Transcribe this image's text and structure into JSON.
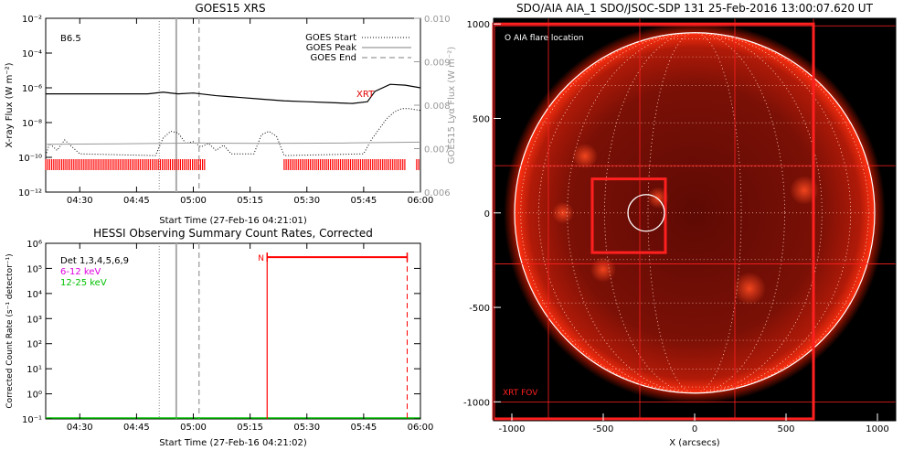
{
  "colors": {
    "goes_long": "#000000",
    "goes_short": "#000000",
    "lya": "#999999",
    "flare_bar": "#ff0000",
    "peak_line": "#aaaaaa",
    "hessi_low": "#ff00ff",
    "hessi_high": "#00c000",
    "xrt_marker": "#ff0000",
    "sun_bg": "#000000",
    "sun_disk": "#7a0d05",
    "sun_limb": "#ff2a10",
    "fov": "#ff2020"
  },
  "chart_data": [
    {
      "type": "line",
      "title": "GOES15 XRS",
      "xlabel": "Start Time (27-Feb-16 04:21:01)",
      "ylabel": "X-ray Flux (W m⁻²)",
      "ylabel_right": "GOES15 Lyα Flux (W m⁻²)",
      "x_tick_labels": [
        "04:30",
        "04:45",
        "05:00",
        "05:15",
        "05:30",
        "05:45",
        "06:00"
      ],
      "x_tick_minutes": [
        270,
        285,
        300,
        315,
        330,
        345,
        360
      ],
      "xlim_minutes": [
        261,
        360
      ],
      "y_tick_labels": [
        "10⁻¹²",
        "10⁻¹⁰",
        "10⁻⁸",
        "10⁻⁶",
        "10⁻⁴",
        "10⁻²"
      ],
      "y_tick_exponents": [
        -12,
        -10,
        -8,
        -6,
        -4,
        -2
      ],
      "ylim_log10": [
        -12,
        -2
      ],
      "y2_tick_labels": [
        "0.006",
        "0.007",
        "0.008",
        "0.009",
        "0.010"
      ],
      "y2lim": [
        0.006,
        0.01
      ],
      "class_label": "B6.5",
      "annotation": "XRT",
      "legend": {
        "position": "top-right",
        "entries": [
          {
            "label": "GOES Start",
            "style": "dotted",
            "minute": 291
          },
          {
            "label": "GOES Peak",
            "style": "solid",
            "minute": 295.5
          },
          {
            "label": "GOES End",
            "style": "dashed",
            "minute": 301.5
          }
        ]
      },
      "series": [
        {
          "style": "solid",
          "x": [
            261,
            270,
            280,
            288,
            292,
            296,
            300,
            306,
            312,
            318,
            324,
            330,
            336,
            342,
            346,
            348,
            352,
            356,
            360
          ],
          "log_y": [
            -6.35,
            -6.35,
            -6.35,
            -6.35,
            -6.25,
            -6.35,
            -6.3,
            -6.45,
            -6.55,
            -6.65,
            -6.75,
            -6.8,
            -6.85,
            -6.9,
            -6.8,
            -6.2,
            -5.8,
            -5.85,
            -6.0
          ]
        },
        {
          "style": "dotted",
          "x": [
            261,
            262,
            264,
            266,
            268,
            270,
            290,
            292,
            294,
            296,
            298,
            300,
            302,
            304,
            306,
            308,
            310,
            316,
            318,
            320,
            322,
            324,
            345,
            347,
            349,
            351,
            353,
            355,
            357,
            360
          ],
          "log_y": [
            -9.9,
            -9.2,
            -9.6,
            -9.0,
            -9.4,
            -9.8,
            -9.9,
            -8.9,
            -8.5,
            -8.6,
            -9.2,
            -9.1,
            -9.4,
            -9.2,
            -9.6,
            -9.3,
            -9.8,
            -9.8,
            -8.7,
            -8.5,
            -8.8,
            -9.9,
            -9.8,
            -9.0,
            -8.4,
            -7.8,
            -7.4,
            -7.2,
            -7.2,
            -7.3
          ]
        },
        {
          "style": "solid-gray",
          "axis": "right",
          "x": [
            261,
            280,
            300,
            320,
            340,
            360
          ],
          "y": [
            0.0071,
            0.00711,
            0.00713,
            0.00712,
            0.00713,
            0.00715
          ]
        }
      ],
      "red_bars": [
        [
          261,
          303
        ],
        [
          324,
          356
        ],
        [
          359,
          360
        ]
      ]
    },
    {
      "type": "line",
      "title": "HESSI Observing Summary Count Rates, Corrected",
      "xlabel": "Start Time (27-Feb-16 04:21:02)",
      "ylabel": "Corrected Count Rate (s⁻¹ detector⁻¹)",
      "x_tick_labels": [
        "04:30",
        "04:45",
        "05:00",
        "05:15",
        "05:30",
        "05:45",
        "06:00"
      ],
      "x_tick_minutes": [
        270,
        285,
        300,
        315,
        330,
        345,
        360
      ],
      "xlim_minutes": [
        261,
        360
      ],
      "y_tick_labels": [
        "10⁻¹",
        "10⁰",
        "10¹",
        "10²",
        "10³",
        "10⁴",
        "10⁵",
        "10⁶"
      ],
      "y_tick_exponents": [
        -1,
        0,
        1,
        2,
        3,
        4,
        5,
        6
      ],
      "ylim_log10": [
        -1,
        6
      ],
      "legend_text": [
        "Det 1,3,4,5,6,9",
        "6-12 keV",
        "12-25 keV"
      ],
      "marker": "N",
      "event_start_minute": 319.5,
      "event_end_minute": 356.5,
      "event_level_log10": 5.45,
      "vlines": {
        "start": 291,
        "peak": 295.5,
        "end": 301.5
      },
      "series": [
        {
          "name": "12-25 keV",
          "x": [
            261,
            360
          ],
          "log_y": [
            -1,
            -1
          ]
        }
      ]
    },
    {
      "type": "scatter",
      "title": "SDO/AIA AIA_1 SDO/JSOC-SDP 131 25-Feb-2016 13:00:07.620 UT",
      "xlabel": "X (arcsecs)",
      "ylabel": "",
      "x_tick_labels": [
        "-1000",
        "-500",
        "0",
        "500",
        "1000"
      ],
      "x_ticks": [
        -1000,
        -500,
        0,
        500,
        1000
      ],
      "y_tick_labels": [
        "-1000",
        "-500",
        "0",
        "500",
        "1000"
      ],
      "y_ticks": [
        -1000,
        -500,
        0,
        500,
        1000
      ],
      "xlim": [
        -1100,
        1100
      ],
      "ylim": [
        -1100,
        1030
      ],
      "solar_radius_arcsec": 985,
      "legend_label": "O AIA flare location",
      "fov_label": "XRT FOV",
      "flare_circle": {
        "x": -265,
        "y": 0,
        "r": 100
      },
      "box_small": {
        "x0": -560,
        "x1": -160,
        "y0": -210,
        "y1": 180
      },
      "box_large": {
        "x0": -1100,
        "x1": 650,
        "y0": -1090,
        "y1": 1000
      },
      "grid_lines_x": [
        -800,
        -300,
        220,
        650
      ],
      "grid_lines_y": [
        250,
        -270,
        990,
        -1000
      ]
    }
  ]
}
